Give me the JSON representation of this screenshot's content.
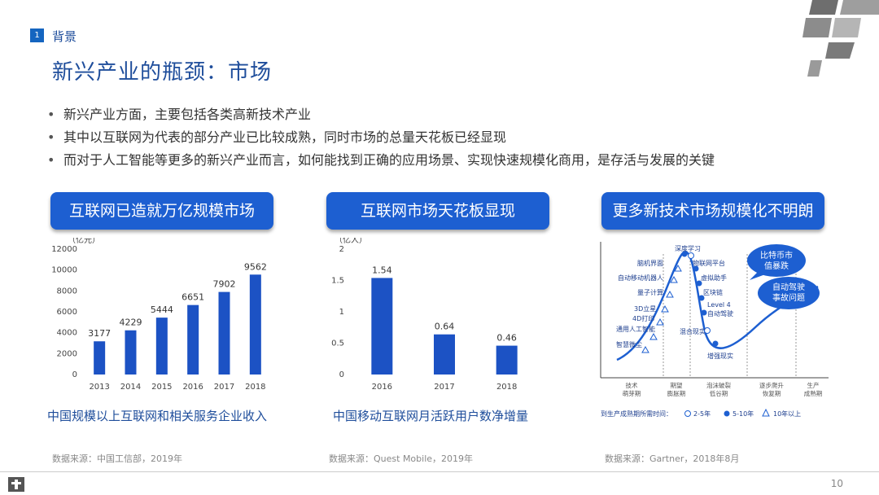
{
  "section": {
    "number": "1",
    "title": "背景"
  },
  "title": "新兴产业的瓶颈：市场",
  "bullets": [
    "新兴产业方面，主要包括各类高新技术产业",
    "其中以互联网为代表的部分产业已比较成熟，同时市场的总量天花板已经显现",
    "而对于人工智能等更多的新兴产业而言，如何能找到正确的应用场景、实现快速规模化商用，是存活与发展的关键"
  ],
  "panels": [
    {
      "heading": "互联网已造就万亿规模市场",
      "caption": "中国规模以上互联网和相关服务企业收入",
      "source": "数据来源：中国工信部，2019年"
    },
    {
      "heading": "互联网市场天花板显现",
      "caption": "中国移动互联网月活跃用户数净增量",
      "source": "数据来源：Quest Mobile，2019年"
    },
    {
      "heading": "更多新技术市场规模化不明朗",
      "caption": "",
      "source": "数据来源：Gartner，2018年8月"
    }
  ],
  "chart_data": [
    {
      "type": "bar",
      "unit": "（亿元）",
      "categories": [
        "2013",
        "2014",
        "2015",
        "2016",
        "2017",
        "2018"
      ],
      "values": [
        3177,
        4229,
        5444,
        6651,
        7902,
        9562
      ],
      "yticks": [
        "0",
        "2000",
        "4000",
        "6000",
        "8000",
        "10000",
        "12000"
      ],
      "ylim": [
        0,
        12000
      ],
      "color": "#1c52c4"
    },
    {
      "type": "bar",
      "unit": "（亿人）",
      "categories": [
        "2016",
        "2017",
        "2018"
      ],
      "values": [
        1.54,
        0.64,
        0.46
      ],
      "yticks": [
        "0",
        "0.5",
        "1",
        "1.5",
        "2"
      ],
      "ylim": [
        0,
        2
      ],
      "color": "#1c52c4"
    }
  ],
  "hype_cycle": {
    "labels": [
      "深度学习",
      "脑机界面",
      "物联网平台",
      "自动移动机器人",
      "虚拟助手",
      "量子计算",
      "区块链",
      "Level 4",
      "自动驾驶",
      "3D立星",
      "4D打印",
      "通用人工智能",
      "混合现实",
      "智慧微尘",
      "增强现实"
    ],
    "phases": [
      "技术\n萌芽期",
      "期望\n膨胀期",
      "泡沫破裂\n低谷期",
      "逐步爬升\n恢复期",
      "生产\n成熟期"
    ],
    "bubbles": [
      "比特币市\n值暴跌",
      "自动驾驶\n事故问题"
    ],
    "legend": {
      "title": "到生产成熟期所需时间：",
      "items": [
        "2-5年",
        "5-10年",
        "10年以上"
      ]
    }
  },
  "page_number": "10",
  "colors": {
    "accent": "#1d5fd1",
    "title": "#1e4d9b",
    "bar": "#1c52c4"
  }
}
